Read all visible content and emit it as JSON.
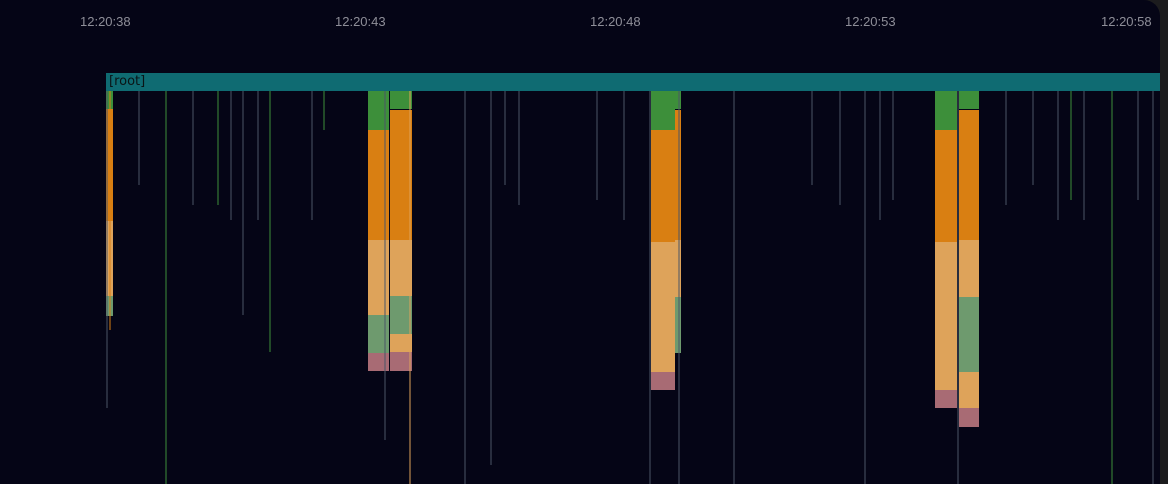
{
  "timeline": {
    "ticks": [
      "12:20:38",
      "12:20:43",
      "12:20:48",
      "12:20:53",
      "12:20:58"
    ]
  },
  "flamegraph": {
    "root_label": "[root]",
    "colors": {
      "background": "#050516",
      "root": "#0f6b72",
      "green": "#3d8f3a",
      "orange": "#d97f12",
      "orange_light": "#dea35a",
      "sage": "#6e9a6e",
      "rose": "#a86b74",
      "thin_line": "#4a5566"
    }
  }
}
